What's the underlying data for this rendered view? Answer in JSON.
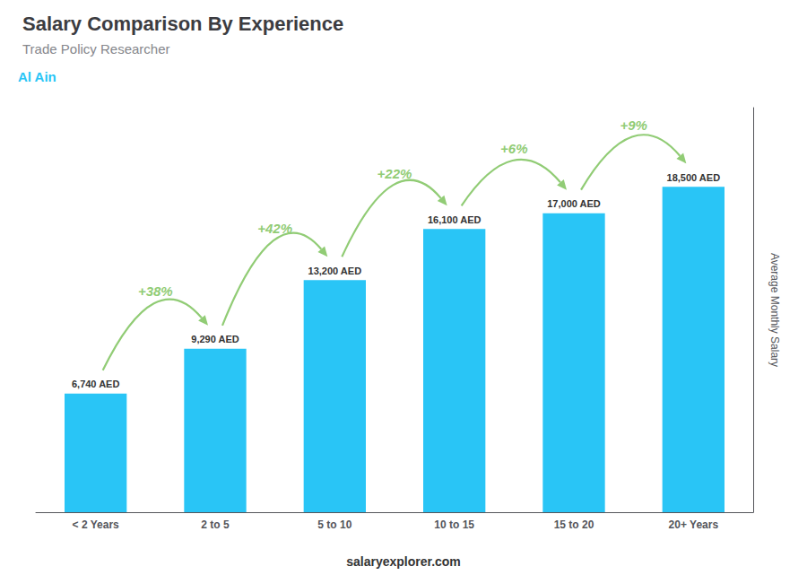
{
  "chart_data": {
    "type": "bar",
    "title": "Salary Comparison By Experience",
    "subtitle": "Trade Policy Researcher",
    "annotations": [
      "Al Ain",
      "salaryexplorer.com"
    ],
    "ylabel": "Average Monthly Salary",
    "categories": [
      "< 2 Years",
      "2 to 5",
      "5 to 10",
      "10 to 15",
      "15 to 20",
      "20+ Years"
    ],
    "values": [
      6740,
      9290,
      13200,
      16100,
      17000,
      18500
    ],
    "value_labels": [
      "6,740 AED",
      "9,290 AED",
      "13,200 AED",
      "16,100 AED",
      "17,000 AED",
      "18,500 AED"
    ],
    "data_labels": true,
    "color": "#29c5f6",
    "changes": [
      38,
      42,
      22,
      6,
      9
    ],
    "change_labels": [
      "+38%",
      "+42%",
      "+22%",
      "+6%",
      "+9%"
    ],
    "ylim": [
      0,
      23000
    ],
    "grid": false,
    "tick_labels": "x"
  }
}
